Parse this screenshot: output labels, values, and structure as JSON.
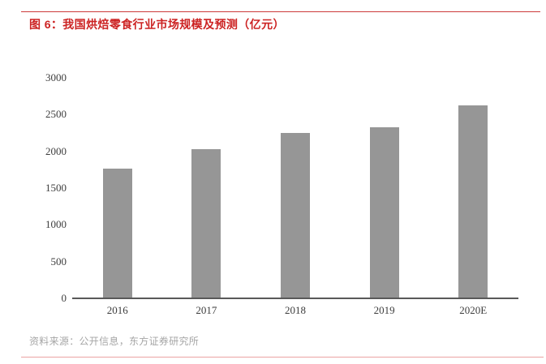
{
  "header": {
    "title": "图 6：我国烘焙零食行业市场规模及预测（亿元）",
    "title_color": "#cc2222",
    "top_rule_color": "#cc3a3a"
  },
  "footer": {
    "source_text": "资料来源：公开信息，东方证券研究所",
    "text_color": "#a6a6a6",
    "bottom_rule_color": "#eba3a3"
  },
  "chart_data": {
    "type": "bar",
    "title": "我国烘焙零食行业市场规模及预测（亿元）",
    "categories": [
      "2016",
      "2017",
      "2018",
      "2019",
      "2020E"
    ],
    "values": [
      1770,
      2030,
      2250,
      2330,
      2620
    ],
    "xlabel": "",
    "ylabel": "",
    "ylim": [
      0,
      3000
    ],
    "yticks": [
      0,
      500,
      1000,
      1500,
      2000,
      2500,
      3000
    ],
    "grid": false,
    "legend": false,
    "bar_color": "#969696",
    "axis_color": "#595959",
    "tick_label_color": "#3d3d3d"
  }
}
